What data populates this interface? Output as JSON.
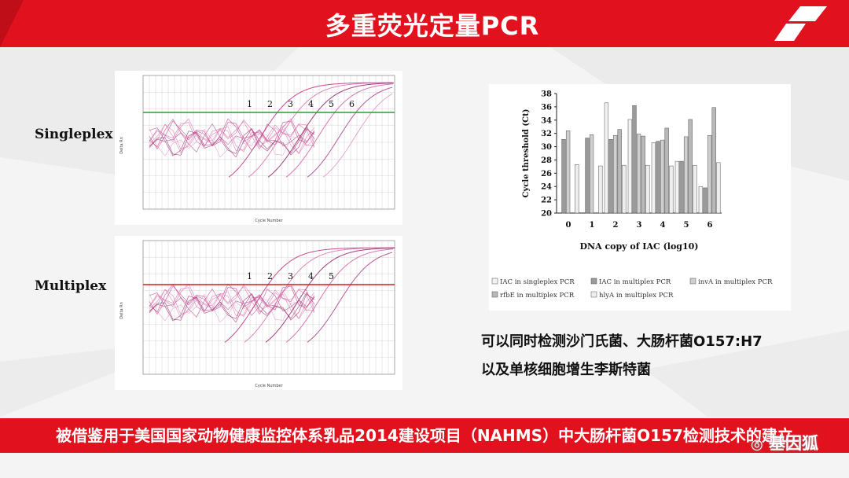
{
  "header": {
    "title": "多重荧光定量PCR"
  },
  "singleplex": {
    "label": "Singleplex",
    "y_axis_label": "Delta Rn",
    "x_axis_label": "Cycle Number",
    "curve_labels": [
      "1",
      "2",
      "3",
      "4",
      "5",
      "6"
    ],
    "threshold_color": "#2aa02a"
  },
  "multiplex": {
    "label": "Multiplex",
    "y_axis_label": "Delta Rn",
    "x_axis_label": "Cycle Number",
    "curve_labels": [
      "1",
      "2",
      "3",
      "4",
      "5"
    ],
    "threshold_color": "#d0201c"
  },
  "chart_data": {
    "type": "bar",
    "xlabel": "DNA copy of IAC (log10)",
    "ylabel": "Cycle threshold (Ct)",
    "ylim": [
      20,
      38
    ],
    "yticks": [
      "20",
      "22",
      "24",
      "26",
      "28",
      "30",
      "32",
      "34",
      "36",
      "38"
    ],
    "categories": [
      "0",
      "1",
      "2",
      "3",
      "4",
      "5",
      "6"
    ],
    "series": [
      {
        "name": "IAC in singleplex PCR",
        "values": [
          null,
          null,
          36.6,
          34.1,
          30.6,
          27.8,
          24.0
        ]
      },
      {
        "name": "IAC in multiplex PCR",
        "values": [
          31.1,
          31.3,
          31.1,
          36.2,
          30.8,
          27.8,
          23.8
        ]
      },
      {
        "name": "invA in multiplex PCR",
        "values": [
          32.4,
          31.8,
          31.7,
          31.9,
          31.0,
          31.5,
          31.7
        ]
      },
      {
        "name": "rfbE in multiplex PCR",
        "values": [
          null,
          null,
          32.6,
          31.6,
          32.8,
          34.1,
          35.9
        ]
      },
      {
        "name": "hlyA in multiplex PCR",
        "values": [
          27.3,
          27.1,
          27.2,
          27.2,
          27.1,
          27.2,
          27.6
        ]
      }
    ],
    "legend": "bottom"
  },
  "description": {
    "line1": "可以同时检测沙门氏菌、大肠杆菌O157:H7",
    "line2": "以及单核细胞增生李斯特菌"
  },
  "footer": {
    "text": "被借鉴用于美国国家动物健康监控体系乳品2014建设项目（NAHMS）中大肠杆菌O157检测技术的建立"
  },
  "watermark": {
    "text": "基因狐"
  }
}
